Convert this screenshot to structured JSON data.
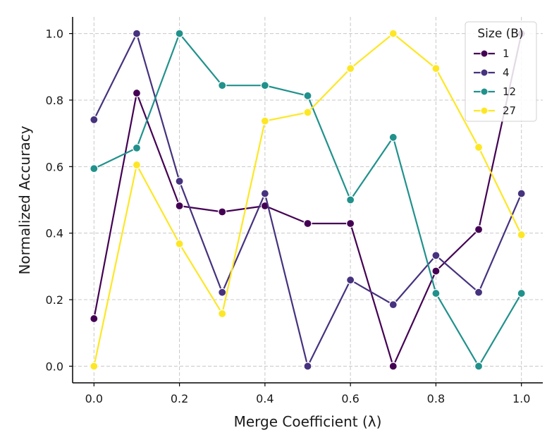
{
  "chart_data": {
    "type": "line",
    "title": "",
    "xlabel": "Merge Coefficient (λ)",
    "ylabel": "Normalized Accuracy",
    "xlim": [
      -0.05,
      1.05
    ],
    "ylim": [
      -0.05,
      1.05
    ],
    "x": [
      0.0,
      0.1,
      0.2,
      0.3,
      0.4,
      0.5,
      0.6,
      0.7,
      0.8,
      0.9,
      1.0
    ],
    "x_ticks": [
      "0.0",
      "0.2",
      "0.4",
      "0.6",
      "0.8",
      "1.0"
    ],
    "x_tick_values": [
      0.0,
      0.2,
      0.4,
      0.6,
      0.8,
      1.0
    ],
    "y_ticks": [
      "0.0",
      "0.2",
      "0.4",
      "0.6",
      "0.8",
      "1.0"
    ],
    "y_tick_values": [
      0.0,
      0.2,
      0.4,
      0.6,
      0.8,
      1.0
    ],
    "grid": true,
    "legend": {
      "title": "Size (B)",
      "position": "top-right"
    },
    "series": [
      {
        "name": "1",
        "color": "#440154",
        "values": [
          0.143,
          0.821,
          0.482,
          0.464,
          0.482,
          0.429,
          0.429,
          0.0,
          0.286,
          0.411,
          1.0
        ]
      },
      {
        "name": "4",
        "color": "#46327e",
        "values": [
          0.741,
          1.0,
          0.556,
          0.222,
          0.519,
          0.0,
          0.259,
          0.185,
          0.333,
          0.222,
          0.519
        ]
      },
      {
        "name": "12",
        "color": "#21918c",
        "values": [
          0.594,
          0.656,
          1.0,
          0.844,
          0.844,
          0.813,
          0.5,
          0.688,
          0.219,
          0.0,
          0.219
        ]
      },
      {
        "name": "27",
        "color": "#fde725",
        "values": [
          0.0,
          0.605,
          0.368,
          0.158,
          0.737,
          0.763,
          0.895,
          1.0,
          0.895,
          0.658,
          0.395
        ]
      }
    ]
  }
}
